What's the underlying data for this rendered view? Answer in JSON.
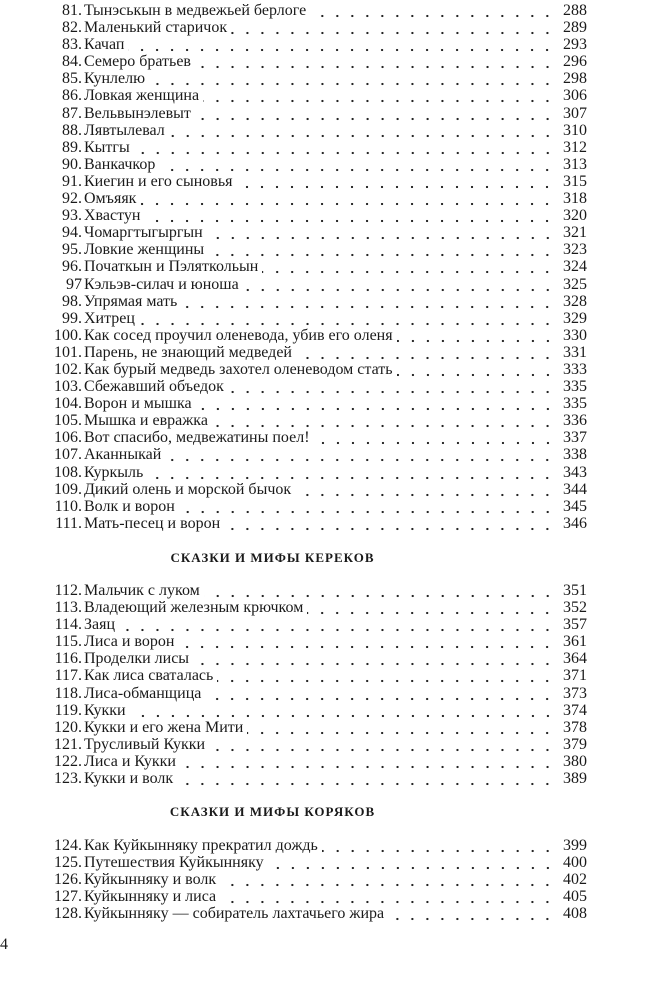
{
  "sections": [
    {
      "heading": "",
      "entries": [
        {
          "num": "81.",
          "title": "Тынэськын в медвежьей берлоге",
          "page": "288"
        },
        {
          "num": "82.",
          "title": "Маленький старичок",
          "page": "289"
        },
        {
          "num": "83.",
          "title": "Качап",
          "page": "293"
        },
        {
          "num": "84.",
          "title": "Семеро братьев",
          "page": "296"
        },
        {
          "num": "85.",
          "title": "Кунлелю",
          "page": "298"
        },
        {
          "num": "86.",
          "title": "Ловкая женщина",
          "page": "306"
        },
        {
          "num": "87.",
          "title": "Вельвынэлевыт",
          "page": "307"
        },
        {
          "num": "88.",
          "title": "Лявтылевал",
          "page": "310"
        },
        {
          "num": "89.",
          "title": "Кытгы",
          "page": "312"
        },
        {
          "num": "90.",
          "title": "Ванкачкор",
          "page": "313"
        },
        {
          "num": "91.",
          "title": "Киегин и его сыновья",
          "page": "315"
        },
        {
          "num": "92.",
          "title": "Омъяяк",
          "page": "318"
        },
        {
          "num": "93.",
          "title": "Хвастун",
          "page": "320"
        },
        {
          "num": "94.",
          "title": "Чомаргтыгыргын",
          "page": "321"
        },
        {
          "num": "95.",
          "title": "Ловкие женщины",
          "page": "323"
        },
        {
          "num": "96.",
          "title": "Початкын и Пэляткольын",
          "page": "324"
        },
        {
          "num": "97",
          "title": "Кэльэв-силач и юноша",
          "page": "325"
        },
        {
          "num": "98.",
          "title": "Упрямая мать",
          "page": "328"
        },
        {
          "num": "99.",
          "title": "Хитрец",
          "page": "329"
        },
        {
          "num": "100.",
          "title": "Как сосед проучил оленевода, убив его оленя",
          "page": "330"
        },
        {
          "num": "101.",
          "title": "Парень, не знающий медведей",
          "page": "331"
        },
        {
          "num": "102.",
          "title": "Как бурый медведь захотел оленеводом стать",
          "page": "333"
        },
        {
          "num": "103.",
          "title": "Сбежавший объедок",
          "page": "335"
        },
        {
          "num": "104.",
          "title": "Ворон и мышка",
          "page": "335"
        },
        {
          "num": "105.",
          "title": "Мышка и евражка",
          "page": "336"
        },
        {
          "num": "106.",
          "title": "Вот спасибо, медвежатины поел!",
          "page": "337"
        },
        {
          "num": "107.",
          "title": "Аканныкай",
          "page": "338"
        },
        {
          "num": "108.",
          "title": "Куркыль",
          "page": "343"
        },
        {
          "num": "109.",
          "title": "Дикий олень и морской бычок",
          "page": "344"
        },
        {
          "num": "110.",
          "title": "Волк и ворон",
          "page": "345"
        },
        {
          "num": "111.",
          "title": "Мать-песец и ворон",
          "page": "346"
        }
      ]
    },
    {
      "heading": "СКАЗКИ И МИФЫ КЕРЕКОВ",
      "entries": [
        {
          "num": "112.",
          "title": "Мальчик с луком",
          "page": "351"
        },
        {
          "num": "113.",
          "title": "Владеющий железным крючком",
          "page": "352"
        },
        {
          "num": "114.",
          "title": "Заяц",
          "page": "357"
        },
        {
          "num": "115.",
          "title": "Лиса и ворон",
          "page": "361"
        },
        {
          "num": "116.",
          "title": "Проделки лисы",
          "page": "364"
        },
        {
          "num": "117.",
          "title": "Как лиса сваталась",
          "page": "371"
        },
        {
          "num": "118.",
          "title": "Лиса-обманщица",
          "page": "373"
        },
        {
          "num": "119.",
          "title": "Кукки",
          "page": "374"
        },
        {
          "num": "120.",
          "title": "Кукки и его жена Мити",
          "page": "378"
        },
        {
          "num": "121.",
          "title": "Трусливый Кукки",
          "page": "379"
        },
        {
          "num": "122.",
          "title": "Лиса и Кукки",
          "page": "380"
        },
        {
          "num": "123.",
          "title": "Кукки и волк",
          "page": "389"
        }
      ]
    },
    {
      "heading": "СКАЗКИ И МИФЫ КОРЯКОВ",
      "entries": [
        {
          "num": "124.",
          "title": "Как Куйкынняку прекратил дождь",
          "page": "399"
        },
        {
          "num": "125.",
          "title": "Путешествия Куйкынняку",
          "page": "400"
        },
        {
          "num": "126.",
          "title": "Куйкынняку и волк",
          "page": "402"
        },
        {
          "num": "127.",
          "title": "Куйкынняку и лиса",
          "page": "405"
        },
        {
          "num": "128.",
          "title": "Куйкынняку — собиратель лахтачьего жира",
          "page": "408"
        }
      ]
    }
  ],
  "page_number": "4"
}
